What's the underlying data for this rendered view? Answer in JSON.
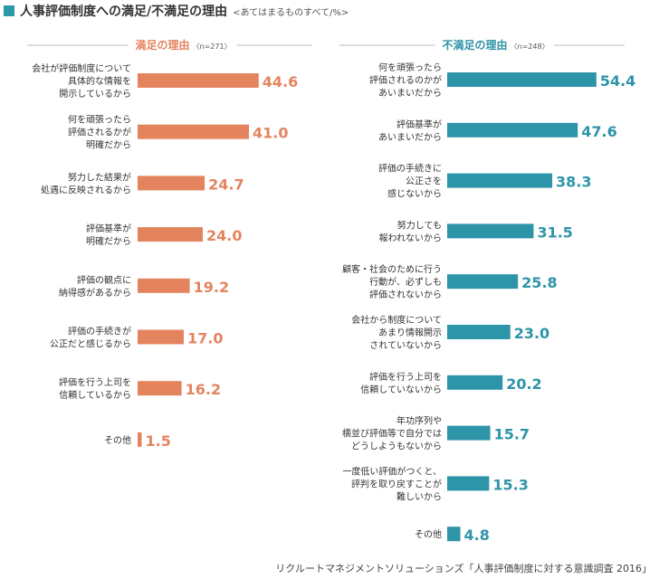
{
  "header": {
    "title": "人事評価制度への満足/不満足の理由",
    "subtitle": "<あてはまるものすべて/%>",
    "marker_color": "#2a9aa8"
  },
  "source": "リクルートマネジメントソリューションズ「人事評価制度に対する意識調査 2016」",
  "chart_data": [
    {
      "type": "bar",
      "orientation": "horizontal",
      "title": "満足の理由",
      "note": "〈n=271〉",
      "color": "#e4845f",
      "categories": [
        [
          "会社が評価制度について",
          "具体的な情報を",
          "開示しているから"
        ],
        [
          "何を頑張ったら",
          "評価されるかが",
          "明確だから"
        ],
        [
          "努力した結果が",
          "処遇に反映されるから"
        ],
        [
          "評価基準が",
          "明確だから"
        ],
        [
          "評価の観点に",
          "納得感があるから"
        ],
        [
          "評価の手続きが",
          "公正だと感じるから"
        ],
        [
          "評価を行う上司を",
          "信頼しているから"
        ],
        [
          "その他"
        ]
      ],
      "values": [
        44.6,
        41.0,
        24.7,
        24.0,
        19.2,
        17.0,
        16.2,
        1.5
      ],
      "value_labels": [
        "44.6",
        "41.0",
        "24.7",
        "24.0",
        "19.2",
        "17.0",
        "16.2",
        "1.5"
      ]
    },
    {
      "type": "bar",
      "orientation": "horizontal",
      "title": "不満足の理由",
      "note": "〈n=248〉",
      "color": "#2e94a8",
      "categories": [
        [
          "何を頑張ったら",
          "評価されるのかが",
          "あいまいだから"
        ],
        [
          "評価基準が",
          "あいまいだから"
        ],
        [
          "評価の手続きに",
          "公正さを",
          "感じないから"
        ],
        [
          "努力しても",
          "報われないから"
        ],
        [
          "顧客・社会のために行う",
          "行動が、必ずしも",
          "評価されないから"
        ],
        [
          "会社から制度について",
          "あまり情報開示",
          "されていないから"
        ],
        [
          "評価を行う上司を",
          "信頼していないから"
        ],
        [
          "年功序列や",
          "横並び評価等で自分では",
          "どうしようもないから"
        ],
        [
          "一度低い評価がつくと、",
          "評判を取り戻すことが",
          "難しいから"
        ],
        [
          "その他"
        ]
      ],
      "values": [
        54.4,
        47.6,
        38.3,
        31.5,
        25.8,
        23.0,
        20.2,
        15.7,
        15.3,
        4.8
      ],
      "value_labels": [
        "54.4",
        "47.6",
        "38.3",
        "31.5",
        "25.8",
        "23.0",
        "20.2",
        "15.7",
        "15.3",
        "4.8"
      ]
    }
  ]
}
